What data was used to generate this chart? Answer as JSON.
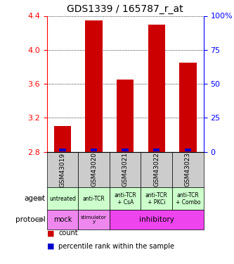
{
  "title": "GDS1339 / 165787_r_at",
  "samples": [
    "GSM43019",
    "GSM43020",
    "GSM43021",
    "GSM43022",
    "GSM43023"
  ],
  "bar_values": [
    3.1,
    4.35,
    3.65,
    4.3,
    3.85
  ],
  "bar_base": 2.8,
  "ylim": [
    2.8,
    4.4
  ],
  "y_ticks_left": [
    2.8,
    3.2,
    3.6,
    4.0,
    4.4
  ],
  "y_ticks_right": [
    0,
    25,
    50,
    75,
    100
  ],
  "bar_color": "#cc0000",
  "blue_color": "#0000cc",
  "agent_labels": [
    "untreated",
    "anti-TCR",
    "anti-TCR\n+ CsA",
    "anti-TCR\n+ PKCi",
    "anti-TCR\n+ Combo"
  ],
  "agent_bg": "#ccffcc",
  "sample_bg": "#cccccc",
  "legend_count_color": "#cc0000",
  "legend_pct_color": "#0000cc",
  "protocol_mock_color": "#ee88ee",
  "protocol_stim_color": "#ee88ee",
  "protocol_inhib_color": "#ee44ee"
}
